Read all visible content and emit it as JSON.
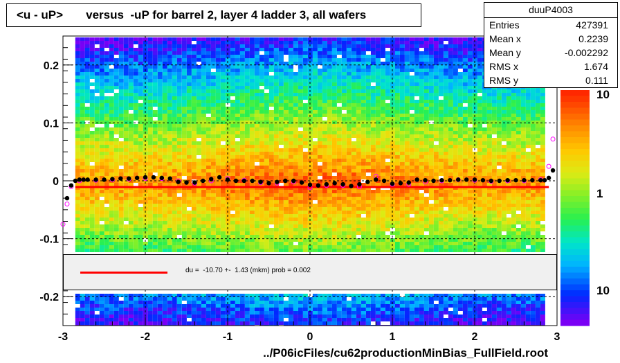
{
  "title": "<u - uP>       versus  -uP for barrel 2, layer 4 ladder 3, all wafers",
  "stats": {
    "name": "duuP4003",
    "rows": [
      {
        "key": "Entries",
        "value": "427391"
      },
      {
        "key": "Mean x",
        "value": "0.2239"
      },
      {
        "key": "Mean y",
        "value": "-0.002292"
      },
      {
        "key": "RMS x",
        "value": "1.674"
      },
      {
        "key": "RMS y",
        "value": "0.111"
      }
    ]
  },
  "fit_label": "du =  -10.70 +-  1.43 (mkm) prob = 0.002",
  "x_title": "../P06icFiles/cu62productionMinBias_FullField.root",
  "colors": {
    "fit_line": "#ff0000",
    "mean_points": "#000000",
    "open_points": "#ff00ff"
  },
  "chart_data": {
    "type": "heatmap",
    "title": "<u - uP>       versus  -uP for barrel 2, layer 4 ladder 3, all wafers",
    "xlabel": "../P06icFiles/cu62productionMinBias_FullField.root",
    "ylabel": "",
    "xlim": [
      -3,
      3
    ],
    "ylim": [
      -0.25,
      0.25
    ],
    "x_ticks": [
      "-3",
      "-2",
      "-1",
      "0",
      "1",
      "2",
      "3"
    ],
    "y_ticks": [
      "-0.2",
      "-0.1",
      "0",
      "0.1",
      "0.2"
    ],
    "z_ticks": [
      "10",
      "1",
      "10"
    ],
    "z_scale": "log",
    "grid": true,
    "series": [
      {
        "name": "mean",
        "x": [
          -2.95,
          -2.9,
          -2.85,
          -2.8,
          -2.75,
          -2.7,
          -2.6,
          -2.5,
          -2.4,
          -2.3,
          -2.2,
          -2.1,
          -2.0,
          -1.9,
          -1.8,
          -1.7,
          -1.6,
          -1.5,
          -1.4,
          -1.3,
          -1.2,
          -1.1,
          -1.0,
          -0.9,
          -0.8,
          -0.7,
          -0.6,
          -0.5,
          -0.4,
          -0.3,
          -0.2,
          -0.1,
          0.0,
          0.1,
          0.2,
          0.3,
          0.4,
          0.5,
          0.6,
          0.7,
          0.8,
          0.9,
          1.0,
          1.1,
          1.2,
          1.3,
          1.4,
          1.5,
          1.6,
          1.7,
          1.8,
          1.9,
          2.0,
          2.1,
          2.2,
          2.3,
          2.4,
          2.5,
          2.6,
          2.7,
          2.8,
          2.85,
          2.9,
          2.95
        ],
        "y": [
          -0.03,
          -0.008,
          0.0,
          0.002,
          0.002,
          0.002,
          0.002,
          0.002,
          0.003,
          0.004,
          0.004,
          0.005,
          0.006,
          0.006,
          0.005,
          0.004,
          -0.002,
          -0.003,
          -0.003,
          0.0,
          0.003,
          0.006,
          0.002,
          0.0,
          0.0,
          0.0,
          -0.002,
          -0.004,
          -0.002,
          0.0,
          0.0,
          -0.003,
          -0.007,
          -0.008,
          -0.006,
          -0.004,
          -0.006,
          -0.009,
          -0.006,
          -0.002,
          0.002,
          0.0,
          -0.005,
          -0.004,
          -0.003,
          0.002,
          0.001,
          0.0,
          0.001,
          0.001,
          0.002,
          0.002,
          0.002,
          0.001,
          0.0,
          0.0,
          0.001,
          0.001,
          0.001,
          0.001,
          0.001,
          0.001,
          0.005,
          0.018
        ]
      },
      {
        "name": "open",
        "x": [
          -3.0,
          -2.95,
          -2.9,
          -2.8,
          -2.6,
          -2.4,
          -2.2,
          -2.0,
          -1.8,
          -1.6,
          -1.4,
          -1.2,
          -1.0,
          -0.8,
          -0.6,
          -0.4,
          -0.2,
          0.0,
          0.2,
          0.4,
          0.6,
          0.8,
          1.0,
          1.2,
          1.4,
          1.6,
          1.8,
          2.0,
          2.2,
          2.4,
          2.6,
          2.8,
          2.9,
          2.95
        ],
        "y": [
          -0.075,
          -0.04,
          -0.01,
          0.0,
          0.001,
          0.002,
          0.003,
          0.004,
          0.004,
          0.0,
          -0.004,
          0.0,
          0.004,
          0.001,
          -0.003,
          -0.004,
          -0.002,
          -0.012,
          -0.008,
          -0.008,
          -0.01,
          0.008,
          -0.006,
          -0.006,
          -0.002,
          0.0,
          0.002,
          0.001,
          -0.001,
          0.0,
          0.0,
          0.002,
          0.025,
          0.072
        ]
      }
    ],
    "fit": {
      "type": "line",
      "y": -0.0107,
      "label": "du =  -10.70 +-  1.43 (mkm) prob = 0.002"
    }
  }
}
